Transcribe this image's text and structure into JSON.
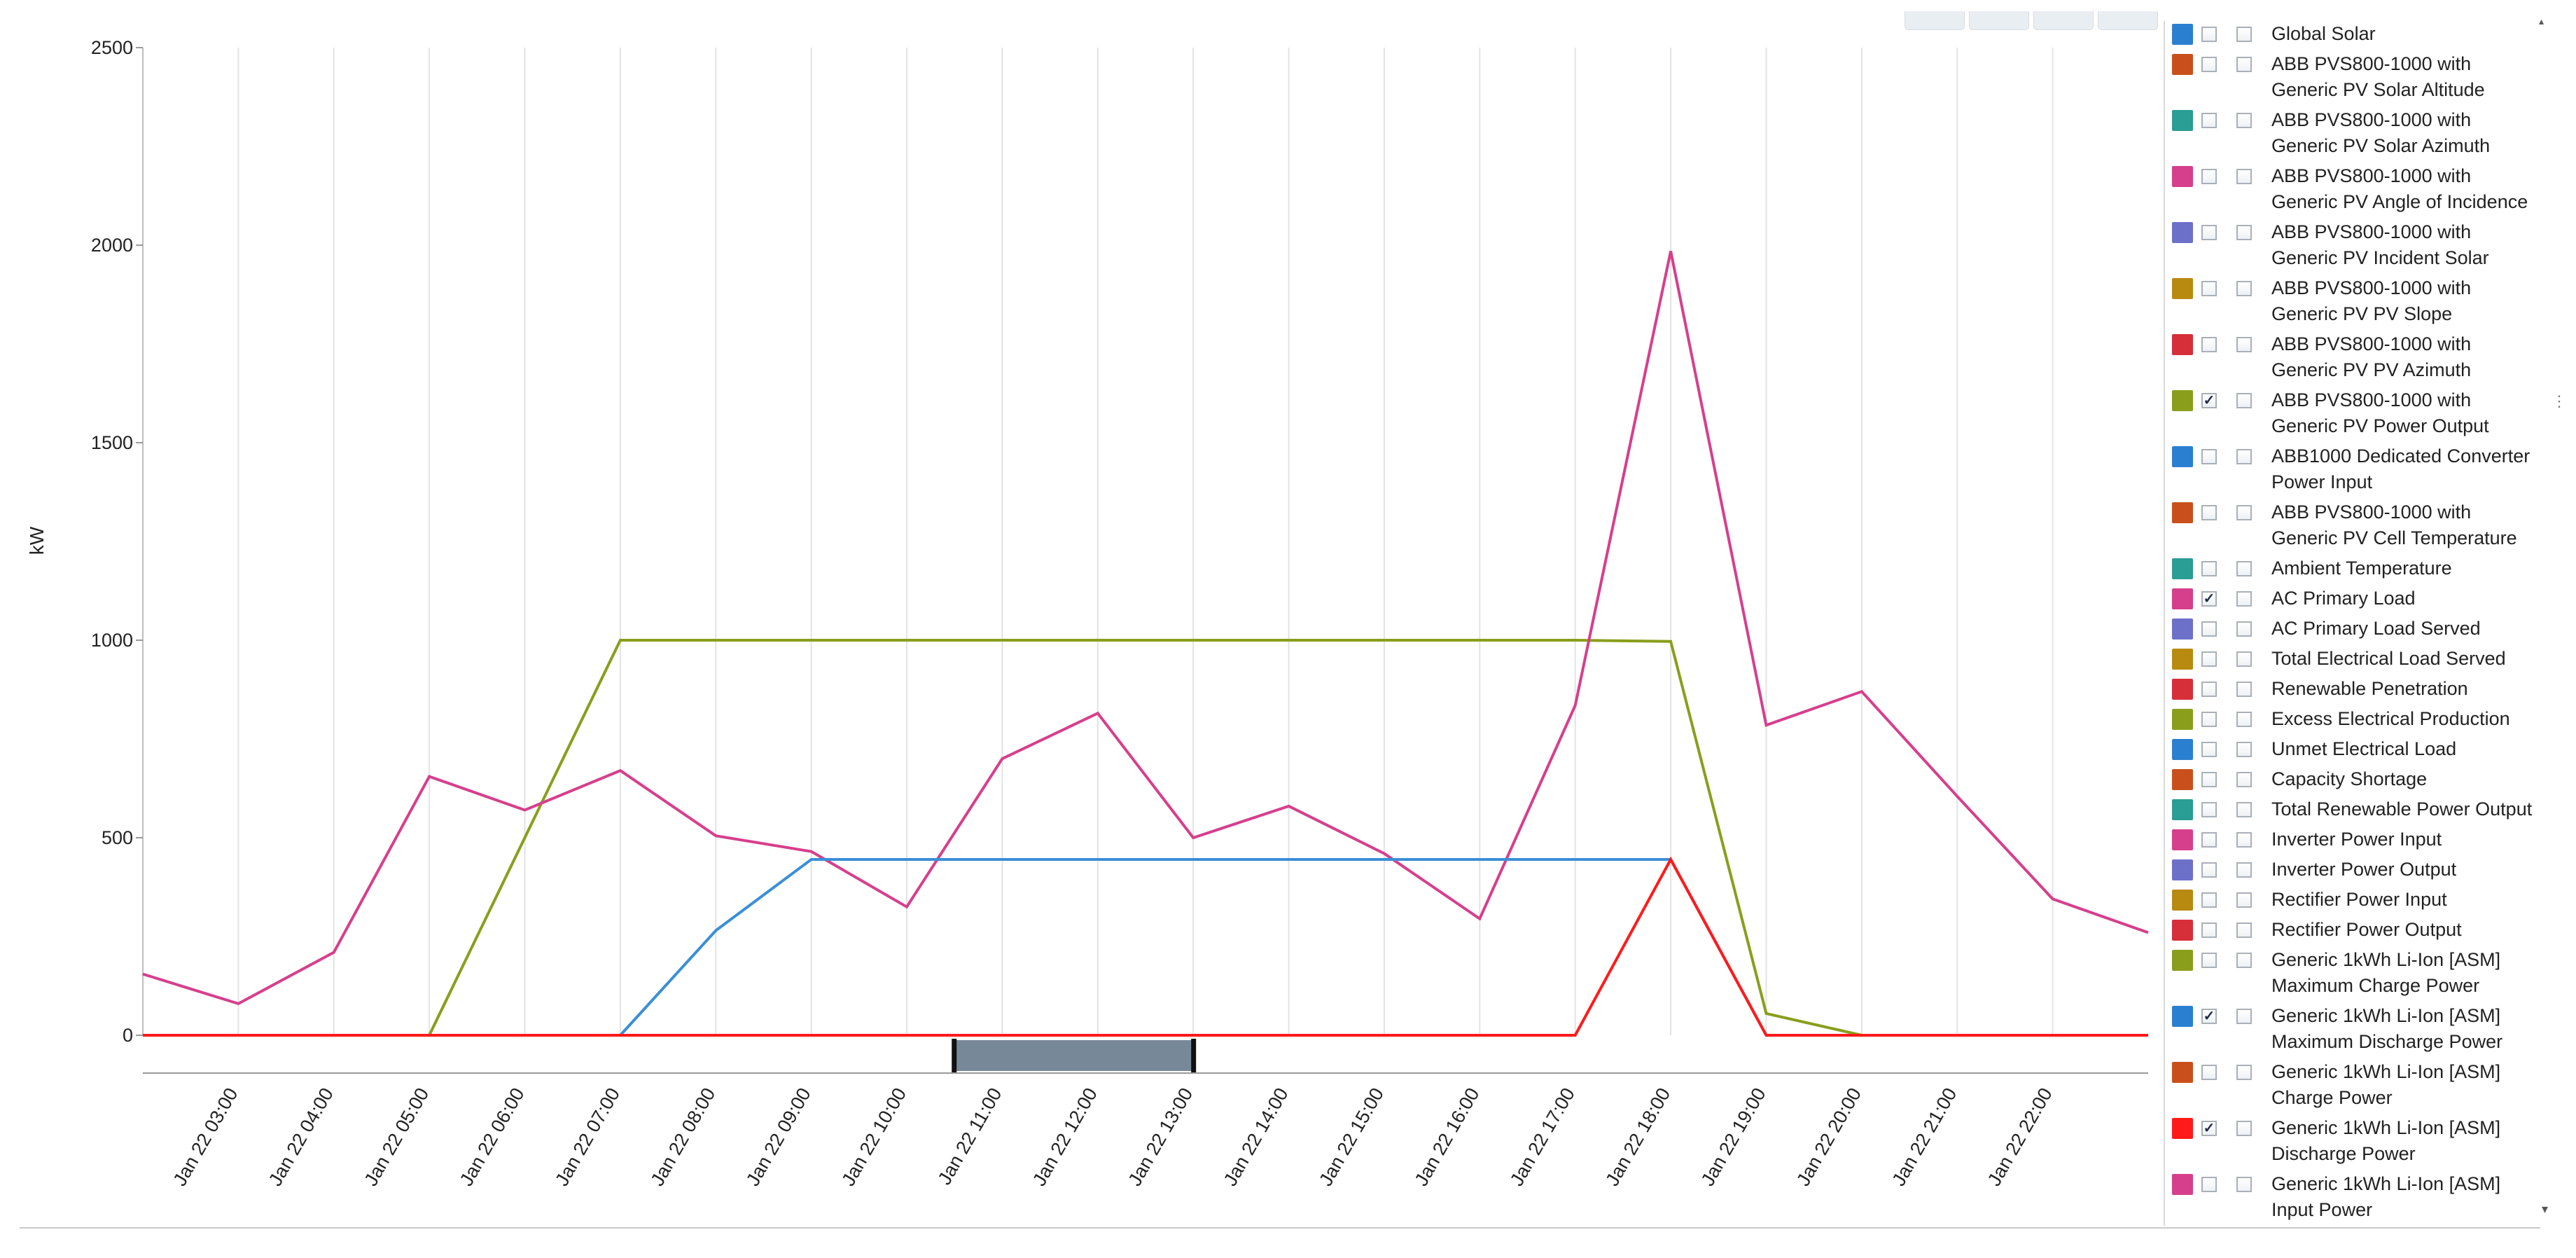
{
  "chart_data": {
    "type": "line",
    "ylabel": "kW",
    "xlabel": "",
    "ylim": [
      0,
      2500
    ],
    "yticks": [
      0,
      500,
      1000,
      1500,
      2000,
      2500
    ],
    "x": [
      "Jan 22 02:00",
      "Jan 22 03:00",
      "Jan 22 04:00",
      "Jan 22 05:00",
      "Jan 22 06:00",
      "Jan 22 07:00",
      "Jan 22 08:00",
      "Jan 22 09:00",
      "Jan 22 10:00",
      "Jan 22 11:00",
      "Jan 22 12:00",
      "Jan 22 13:00",
      "Jan 22 14:00",
      "Jan 22 15:00",
      "Jan 22 16:00",
      "Jan 22 17:00",
      "Jan 22 18:00",
      "Jan 22 19:00",
      "Jan 22 20:00",
      "Jan 22 21:00",
      "Jan 22 22:00",
      "Jan 22 23:00"
    ],
    "xtick_labels": [
      "Jan 22 03:00",
      "Jan 22 04:00",
      "Jan 22 05:00",
      "Jan 22 06:00",
      "Jan 22 07:00",
      "Jan 22 08:00",
      "Jan 22 09:00",
      "Jan 22 10:00",
      "Jan 22 11:00",
      "Jan 22 12:00",
      "Jan 22 13:00",
      "Jan 22 14:00",
      "Jan 22 15:00",
      "Jan 22 16:00",
      "Jan 22 17:00",
      "Jan 22 18:00",
      "Jan 22 19:00",
      "Jan 22 20:00",
      "Jan 22 21:00",
      "Jan 22 22:00"
    ],
    "grid": "vertical",
    "legend_placement": "right",
    "series": [
      {
        "name": "ABB PVS800-1000 with Generic PV Power Output",
        "color": "#8a9e1c",
        "values": [
          0,
          0,
          0,
          0,
          500,
          1000,
          1000,
          1000,
          1000,
          1000,
          1000,
          1000,
          1000,
          1000,
          1000,
          1000,
          997,
          55,
          0,
          0,
          0,
          0
        ]
      },
      {
        "name": "AC Primary Load",
        "color": "#d63f8c",
        "values": [
          155,
          80,
          210,
          655,
          570,
          670,
          505,
          465,
          325,
          700,
          815,
          500,
          580,
          460,
          295,
          835,
          1985,
          785,
          870,
          605,
          345,
          260
        ]
      },
      {
        "name": "Generic 1kWh Li-Ion [ASM] Maximum Discharge Power",
        "color": "#3a8fd6",
        "values": [
          0,
          0,
          0,
          0,
          0,
          0,
          265,
          445,
          445,
          445,
          445,
          445,
          445,
          445,
          445,
          445,
          445,
          0,
          0,
          0,
          0,
          0
        ]
      },
      {
        "name": "Generic 1kWh Li-Ion [ASM] Discharge Power",
        "color": "#ff1a1a",
        "values": [
          0,
          0,
          0,
          0,
          0,
          0,
          0,
          0,
          0,
          0,
          0,
          0,
          0,
          0,
          0,
          0,
          445,
          0,
          0,
          0,
          0,
          0
        ]
      }
    ],
    "range_selector": {
      "from": "Jan 22 10:30",
      "to": "Jan 22 13:00"
    }
  },
  "legend": {
    "items": [
      {
        "label": "Global Solar",
        "color": "#2b7fd0",
        "checked": false
      },
      {
        "label": "ABB PVS800-1000 with Generic PV Solar Altitude",
        "color": "#c9501c",
        "checked": false
      },
      {
        "label": "ABB PVS800-1000 with Generic PV Solar Azimuth",
        "color": "#2a9d94",
        "checked": false
      },
      {
        "label": "ABB PVS800-1000 with Generic PV Angle of Incidence",
        "color": "#d63f8c",
        "checked": false
      },
      {
        "label": "ABB PVS800-1000 with Generic PV Incident Solar",
        "color": "#6d70c9",
        "checked": false
      },
      {
        "label": "ABB PVS800-1000 with Generic PV PV Slope",
        "color": "#b88a10",
        "checked": false
      },
      {
        "label": "ABB PVS800-1000 with Generic PV PV Azimuth",
        "color": "#d62f3a",
        "checked": false
      },
      {
        "label": "ABB PVS800-1000 with Generic PV Power Output",
        "color": "#8a9e1c",
        "checked": true
      },
      {
        "label": "ABB1000 Dedicated Converter Power Input",
        "color": "#2b7fd0",
        "checked": false
      },
      {
        "label": "ABB PVS800-1000 with Generic PV Cell Temperature",
        "color": "#c9501c",
        "checked": false
      },
      {
        "label": "Ambient Temperature",
        "color": "#2a9d94",
        "checked": false
      },
      {
        "label": "AC Primary Load",
        "color": "#d63f8c",
        "checked": true
      },
      {
        "label": "AC Primary Load Served",
        "color": "#6d70c9",
        "checked": false
      },
      {
        "label": "Total Electrical Load Served",
        "color": "#b88a10",
        "checked": false
      },
      {
        "label": "Renewable Penetration",
        "color": "#d62f3a",
        "checked": false
      },
      {
        "label": "Excess Electrical Production",
        "color": "#8a9e1c",
        "checked": false
      },
      {
        "label": "Unmet Electrical Load",
        "color": "#2b7fd0",
        "checked": false
      },
      {
        "label": "Capacity Shortage",
        "color": "#c9501c",
        "checked": false
      },
      {
        "label": "Total Renewable Power Output",
        "color": "#2a9d94",
        "checked": false
      },
      {
        "label": "Inverter Power Input",
        "color": "#d63f8c",
        "checked": false
      },
      {
        "label": "Inverter Power Output",
        "color": "#6d70c9",
        "checked": false
      },
      {
        "label": "Rectifier Power Input",
        "color": "#b88a10",
        "checked": false
      },
      {
        "label": "Rectifier Power Output",
        "color": "#d62f3a",
        "checked": false
      },
      {
        "label": "Generic 1kWh Li-Ion [ASM] Maximum Charge Power",
        "color": "#8a9e1c",
        "checked": false
      },
      {
        "label": "Generic 1kWh Li-Ion [ASM] Maximum Discharge Power",
        "color": "#2b7fd0",
        "checked": true
      },
      {
        "label": "Generic 1kWh Li-Ion [ASM] Charge Power",
        "color": "#c9501c",
        "checked": false
      },
      {
        "label": "Generic 1kWh Li-Ion [ASM] Discharge Power",
        "color": "#ff1a1a",
        "checked": true
      },
      {
        "label": "Generic 1kWh Li-Ion [ASM] Input Power",
        "color": "#d63f8c",
        "checked": false
      }
    ]
  }
}
